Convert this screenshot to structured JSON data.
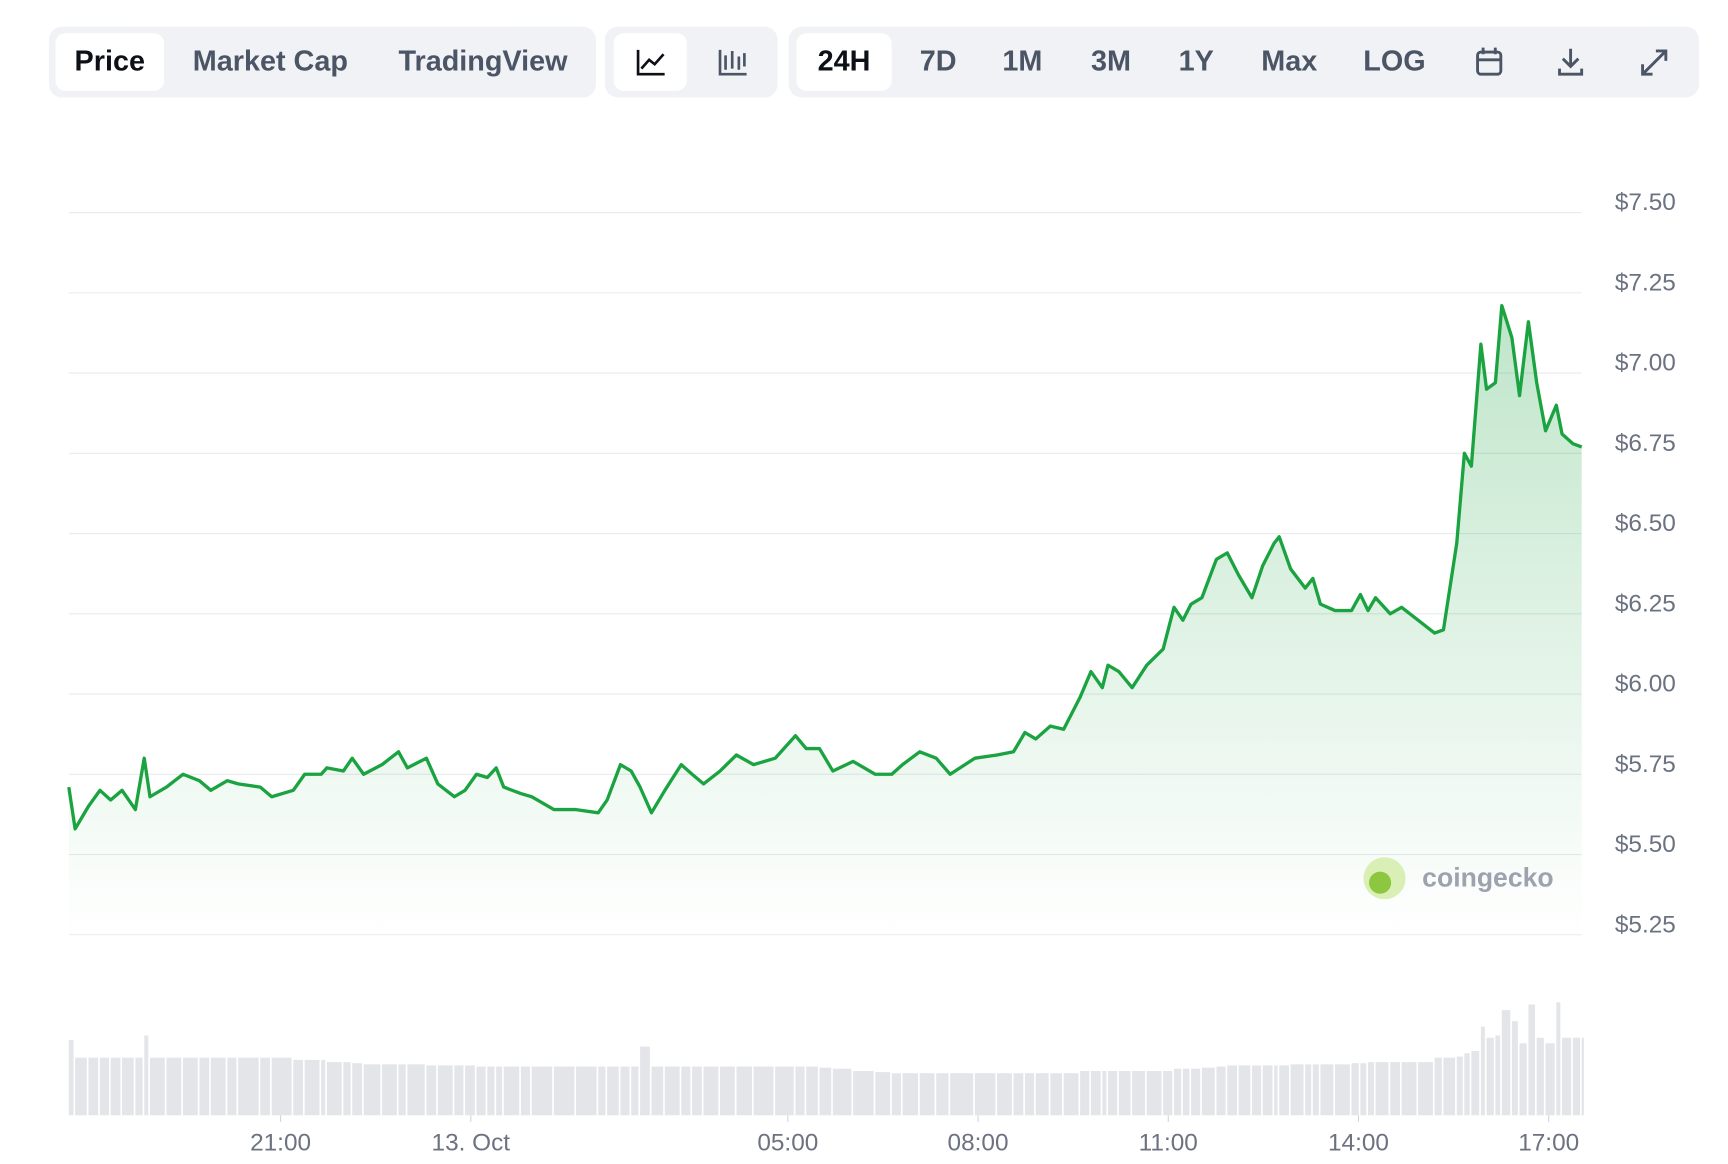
{
  "toolbar": {
    "views": [
      "Price",
      "Market Cap",
      "TradingView"
    ],
    "ranges": [
      "24H",
      "7D",
      "1M",
      "3M",
      "1Y",
      "Max",
      "LOG"
    ]
  },
  "watermark": "coingecko",
  "chart_data": {
    "type": "line",
    "color": "#1aa340",
    "grid": true,
    "x": [
      -6.34,
      -6.24,
      -6.03,
      -5.85,
      -5.68,
      -5.5,
      -5.29,
      -5.15,
      -5.06,
      -4.8,
      -4.54,
      -4.28,
      -4.1,
      -3.84,
      -3.67,
      -3.32,
      -3.14,
      -2.8,
      -2.62,
      -2.36,
      -2.27,
      -2.01,
      -1.87,
      -1.69,
      -1.4,
      -1.14,
      -1,
      -0.7,
      -0.52,
      -0.26,
      -0.09,
      0.09,
      0.26,
      0.4,
      0.52,
      0.79,
      0.96,
      1.31,
      1.66,
      2.01,
      2.15,
      2.36,
      2.53,
      2.67,
      2.85,
      3.06,
      3.32,
      3.49,
      3.67,
      3.93,
      4.19,
      4.46,
      4.8,
      5.12,
      5.29,
      5.5,
      5.71,
      6.03,
      6.38,
      6.64,
      6.81,
      7.08,
      7.34,
      7.56,
      7.95,
      8.3,
      8.56,
      8.74,
      8.91,
      9.14,
      9.35,
      9.61,
      9.78,
      9.96,
      10.05,
      10.22,
      10.43,
      10.66,
      10.92,
      11.09,
      11.23,
      11.36,
      11.53,
      11.76,
      11.93,
      12.11,
      12.32,
      12.49,
      12.67,
      12.75,
      12.93,
      13.16,
      13.28,
      13.4,
      13.63,
      13.89,
      14.03,
      14.15,
      14.27,
      14.5,
      14.68,
      14.94,
      15.2,
      15.34,
      15.55,
      15.67,
      15.78,
      15.93,
      16.02,
      16.16,
      16.26,
      16.42,
      16.54,
      16.68,
      16.81,
      16.95,
      17.12,
      17.21,
      17.38,
      17.52
    ],
    "series": [
      {
        "name": "Price",
        "values": [
          5.71,
          5.58,
          5.65,
          5.7,
          5.67,
          5.7,
          5.64,
          5.8,
          5.68,
          5.71,
          5.75,
          5.73,
          5.7,
          5.73,
          5.72,
          5.71,
          5.68,
          5.7,
          5.75,
          5.75,
          5.77,
          5.76,
          5.8,
          5.75,
          5.78,
          5.82,
          5.77,
          5.8,
          5.72,
          5.68,
          5.7,
          5.75,
          5.74,
          5.77,
          5.71,
          5.69,
          5.68,
          5.64,
          5.64,
          5.63,
          5.67,
          5.78,
          5.76,
          5.71,
          5.63,
          5.7,
          5.78,
          5.75,
          5.72,
          5.76,
          5.81,
          5.78,
          5.8,
          5.87,
          5.83,
          5.83,
          5.76,
          5.79,
          5.75,
          5.75,
          5.78,
          5.82,
          5.8,
          5.75,
          5.8,
          5.81,
          5.82,
          5.88,
          5.86,
          5.9,
          5.89,
          5.99,
          6.07,
          6.02,
          6.09,
          6.07,
          6.02,
          6.09,
          6.14,
          6.27,
          6.23,
          6.28,
          6.3,
          6.42,
          6.44,
          6.37,
          6.3,
          6.4,
          6.47,
          6.49,
          6.39,
          6.33,
          6.36,
          6.28,
          6.26,
          6.26,
          6.31,
          6.26,
          6.3,
          6.25,
          6.27,
          6.23,
          6.19,
          6.2,
          6.47,
          6.75,
          6.71,
          7.09,
          6.95,
          6.97,
          7.21,
          7.11,
          6.93,
          7.16,
          6.97,
          6.82,
          6.9,
          6.81,
          6.78,
          6.77
        ]
      }
    ],
    "volume": [
      68,
      52,
      52,
      52,
      52,
      52,
      52,
      72,
      52,
      52,
      52,
      52,
      52,
      52,
      52,
      52,
      52,
      50,
      50,
      50,
      48,
      48,
      47,
      46,
      46,
      46,
      46,
      45,
      45,
      45,
      45,
      44,
      44,
      44,
      44,
      44,
      44,
      44,
      44,
      44,
      44,
      44,
      44,
      62,
      44,
      44,
      44,
      44,
      44,
      44,
      44,
      44,
      44,
      44,
      44,
      43,
      42,
      40,
      39,
      38,
      38,
      38,
      38,
      38,
      38,
      38,
      38,
      38,
      38,
      38,
      38,
      40,
      40,
      40,
      40,
      40,
      40,
      40,
      40,
      42,
      42,
      42,
      43,
      44,
      45,
      45,
      45,
      45,
      45,
      45,
      46,
      46,
      46,
      46,
      46,
      47,
      47,
      48,
      48,
      48,
      48,
      48,
      52,
      52,
      53,
      56,
      58,
      80,
      70,
      72,
      95,
      85,
      65,
      100,
      70,
      65,
      102,
      70,
      70,
      70
    ],
    "xlim": [
      -6.34,
      17.52
    ],
    "xticks": [
      {
        "value": -3,
        "label": "21:00"
      },
      {
        "value": 0,
        "label": "13. Oct"
      },
      {
        "value": 5,
        "label": "05:00"
      },
      {
        "value": 8,
        "label": "08:00"
      },
      {
        "value": 11,
        "label": "11:00"
      },
      {
        "value": 14,
        "label": "14:00"
      },
      {
        "value": 17,
        "label": "17:00"
      }
    ],
    "ylim": [
      5.25,
      7.5
    ],
    "yticks": [
      {
        "value": 7.5,
        "label": "$7.50"
      },
      {
        "value": 7.25,
        "label": "$7.25"
      },
      {
        "value": 7,
        "label": "$7.00"
      },
      {
        "value": 6.75,
        "label": "$6.75"
      },
      {
        "value": 6.5,
        "label": "$6.50"
      },
      {
        "value": 6.25,
        "label": "$6.25"
      },
      {
        "value": 6,
        "label": "$6.00"
      },
      {
        "value": 5.75,
        "label": "$5.75"
      },
      {
        "value": 5.5,
        "label": "$5.50"
      },
      {
        "value": 5.25,
        "label": "$5.25"
      }
    ]
  }
}
